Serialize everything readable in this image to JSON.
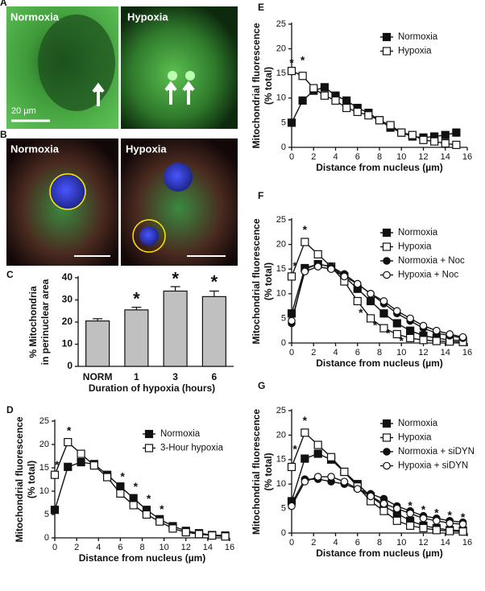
{
  "images": [
    {
      "panel": "A",
      "labels": [
        "Normoxia",
        "Hypoxia"
      ],
      "scale_bar": "20 µm"
    },
    {
      "panel": "B",
      "labels": [
        "Normoxia",
        "Hypoxia"
      ]
    }
  ],
  "chart_data": [
    {
      "type": "bar",
      "panel": "C",
      "ylabel": [
        "% Mitochondria",
        "in perinuclear area"
      ],
      "xlabel": "Duration of hypoxia (hours)",
      "categories": [
        "NORM",
        "1",
        "3",
        "6"
      ],
      "values": [
        20.5,
        25.5,
        34,
        31.5
      ],
      "errors": [
        1,
        1.2,
        2,
        2.5
      ],
      "color": "#c0c0c0",
      "ylim": [
        0,
        40
      ],
      "yticks": [
        0,
        10,
        20,
        30,
        40
      ],
      "annotations": [
        {
          "text": "*",
          "x": "1",
          "y": 30
        },
        {
          "text": "*",
          "x": "3",
          "y": 39
        },
        {
          "text": "*",
          "x": "6",
          "y": 37.5
        }
      ]
    },
    {
      "type": "line",
      "panel": "D",
      "ylabel": [
        "Mitochondrial fluorescence",
        "(% total)"
      ],
      "xlabel": "Distance from nucleus (µm)",
      "x": [
        0,
        1.2,
        2.4,
        3.6,
        4.8,
        6,
        7.2,
        8.4,
        9.6,
        10.8,
        12,
        13.2,
        14.4,
        15.6
      ],
      "series": [
        {
          "name": "Normoxia",
          "color": "#111111",
          "marker": "square",
          "filled": true,
          "values": [
            6,
            15.2,
            16.2,
            15.8,
            13.5,
            11,
            8.5,
            6,
            4,
            2.5,
            1.5,
            1,
            0.6,
            0.5
          ]
        },
        {
          "name": "3-Hour hypoxia",
          "color": "#111111",
          "marker": "square",
          "filled": false,
          "values": [
            13.5,
            20.5,
            18,
            15.5,
            13,
            9.5,
            7,
            5,
            3.5,
            2,
            1.2,
            0.8,
            0.5,
            0.3
          ]
        }
      ],
      "xlim": [
        0,
        16
      ],
      "xticks": [
        0,
        2,
        4,
        6,
        8,
        10,
        12,
        14,
        16
      ],
      "ylim": [
        0,
        25
      ],
      "yticks": [
        0,
        5,
        10,
        15,
        20,
        25
      ],
      "legend": "upper right",
      "annotations": [
        {
          "text": "*",
          "x": 0.2,
          "y": 15.5
        },
        {
          "text": "*",
          "x": 1.3,
          "y": 22.8
        },
        {
          "text": "*",
          "x": 6.2,
          "y": 13
        },
        {
          "text": "*",
          "x": 7.4,
          "y": 10.8
        },
        {
          "text": "*",
          "x": 8.6,
          "y": 8.2
        },
        {
          "text": "*",
          "x": 9.8,
          "y": 6
        }
      ]
    },
    {
      "type": "line",
      "panel": "E",
      "ylabel": [
        "Mitochondrial  fluorescence",
        "(% total)"
      ],
      "xlabel": "Distance from nucleus (µm)",
      "x": [
        0,
        1,
        2,
        3,
        4,
        5,
        6,
        7,
        8,
        9,
        10,
        11,
        12,
        13,
        14,
        15
      ],
      "series": [
        {
          "name": "Normoxia",
          "color": "#111111",
          "marker": "square",
          "filled": true,
          "values": [
            5,
            9.5,
            11.5,
            12.2,
            10.5,
            9.5,
            8,
            7,
            5.5,
            4,
            3,
            2.2,
            2,
            2.2,
            2.5,
            3
          ]
        },
        {
          "name": "Hypoxia",
          "color": "#111111",
          "marker": "square",
          "filled": false,
          "values": [
            15.5,
            14.5,
            12,
            10.5,
            9.5,
            8,
            7.2,
            6.5,
            5.5,
            4.5,
            3,
            2.5,
            1.5,
            1.2,
            0.8,
            0.5
          ]
        }
      ],
      "xlim": [
        0,
        16
      ],
      "xticks": [
        0,
        2,
        4,
        6,
        8,
        10,
        12,
        14,
        16
      ],
      "ylim": [
        0,
        25
      ],
      "yticks": [
        0,
        5,
        10,
        15,
        20,
        25
      ],
      "legend": "upper right",
      "annotations": [
        {
          "text": "*",
          "x": 0,
          "y": 17
        },
        {
          "text": "*",
          "x": 1,
          "y": 17.5
        }
      ]
    },
    {
      "type": "line",
      "panel": "F",
      "ylabel": [
        "Mitochondrial  fluorescence",
        "(% total)"
      ],
      "xlabel": "Distance from nucleus (µm)",
      "x": [
        0,
        1.2,
        2.4,
        3.6,
        4.8,
        6,
        7.2,
        8.4,
        9.6,
        10.8,
        12,
        13.2,
        14.4,
        15.6
      ],
      "series": [
        {
          "name": "Normoxia",
          "color": "#111111",
          "marker": "square",
          "filled": true,
          "values": [
            6,
            15.2,
            16,
            15.5,
            13.5,
            11,
            8.5,
            6,
            4,
            2.5,
            1.5,
            1,
            0.6,
            0.5
          ]
        },
        {
          "name": "Hypoxia",
          "color": "#111111",
          "marker": "square",
          "filled": false,
          "values": [
            13.5,
            20.5,
            18,
            15.5,
            12.5,
            8.5,
            5,
            3,
            1.8,
            1,
            0.6,
            0.4,
            0.3,
            0.2
          ]
        },
        {
          "name": "Normoxia + Noc",
          "color": "#111111",
          "marker": "circle",
          "filled": true,
          "values": [
            4,
            15,
            16,
            15.5,
            14,
            12,
            10,
            8,
            6,
            4.5,
            3,
            2,
            1.5,
            1
          ]
        },
        {
          "name": "Hypoxia + Noc",
          "color": "#111111",
          "marker": "circle",
          "filled": false,
          "values": [
            4.5,
            14.5,
            15.5,
            15,
            13.5,
            12,
            10,
            8.5,
            6.5,
            5,
            3.5,
            2.5,
            1.8,
            1.2
          ]
        }
      ],
      "xlim": [
        0,
        16
      ],
      "xticks": [
        0,
        2,
        4,
        6,
        8,
        10,
        12,
        14,
        16
      ],
      "ylim": [
        0,
        25
      ],
      "yticks": [
        0,
        5,
        10,
        15,
        20,
        25
      ],
      "legend": "upper right",
      "annotations": [
        {
          "text": "*",
          "x": 0.3,
          "y": 15.5
        },
        {
          "text": "*",
          "x": 1.2,
          "y": 22.8
        },
        {
          "text": "*",
          "x": 6.3,
          "y": 6
        },
        {
          "text": "*",
          "x": 7.6,
          "y": 3.5
        },
        {
          "text": "*",
          "x": 8.8,
          "y": 1.8
        },
        {
          "text": "*",
          "x": 10,
          "y": 0.3
        }
      ]
    },
    {
      "type": "line",
      "panel": "G",
      "ylabel": [
        "Mitochondrial fluorescence",
        "(% total)"
      ],
      "xlabel": "Distance from nucleus (µm)",
      "x": [
        0,
        1.2,
        2.4,
        3.6,
        4.8,
        6,
        7.2,
        8.4,
        9.6,
        10.8,
        12,
        13.2,
        14.4,
        15.6
      ],
      "series": [
        {
          "name": "Normoxia",
          "color": "#111111",
          "marker": "square",
          "filled": true,
          "values": [
            6.5,
            15.2,
            16.2,
            15,
            12.5,
            10,
            7.5,
            5.5,
            4,
            2.5,
            1.5,
            1,
            0.6,
            0.5
          ]
        },
        {
          "name": "Hypoxia",
          "color": "#111111",
          "marker": "square",
          "filled": false,
          "values": [
            13.5,
            20.5,
            18,
            15.5,
            12.5,
            9.5,
            6.5,
            4.5,
            2.5,
            1.5,
            1,
            0.6,
            0.4,
            0.3
          ]
        },
        {
          "name": "Normoxia + siDYN",
          "color": "#111111",
          "marker": "circle",
          "filled": true,
          "values": [
            6,
            11,
            11,
            10.5,
            10,
            9,
            8,
            7,
            5.5,
            4.5,
            3.5,
            3,
            2.5,
            2.2
          ]
        },
        {
          "name": "Hypoxia + siDYN",
          "color": "#111111",
          "marker": "circle",
          "filled": false,
          "values": [
            5.5,
            10.5,
            11.5,
            11.5,
            10.5,
            9,
            7.5,
            6,
            5,
            4,
            3,
            2.5,
            2,
            1.8
          ]
        }
      ],
      "xlim": [
        0,
        16
      ],
      "xticks": [
        0,
        2,
        4,
        6,
        8,
        10,
        12,
        14,
        16
      ],
      "ylim": [
        0,
        25
      ],
      "yticks": [
        0,
        5,
        10,
        15,
        20,
        25
      ],
      "legend": "upper right",
      "annotations": [
        {
          "text": "*",
          "x": 0.3,
          "y": 17
        },
        {
          "text": "*",
          "x": 1.2,
          "y": 22.8
        },
        {
          "text": "*",
          "x": 10.8,
          "y": 5.5
        },
        {
          "text": "*",
          "x": 12,
          "y": 4.6
        },
        {
          "text": "*",
          "x": 13.2,
          "y": 4
        },
        {
          "text": "*",
          "x": 14.4,
          "y": 3.5
        },
        {
          "text": "*",
          "x": 15.6,
          "y": 3.1
        }
      ]
    }
  ]
}
